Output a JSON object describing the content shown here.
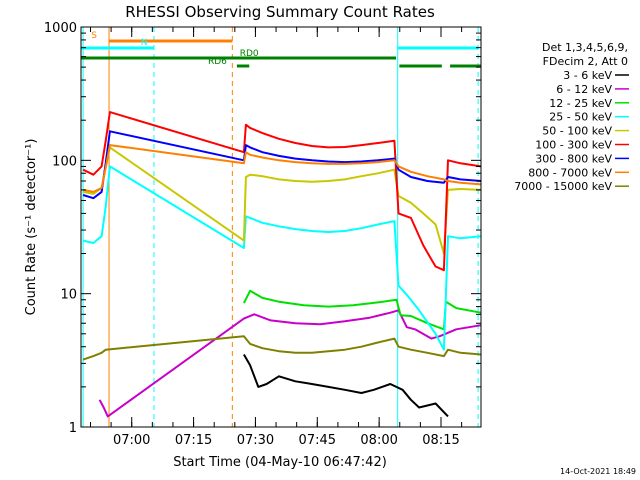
{
  "chart_data": {
    "type": "line",
    "title": "RHESSI Observing Summary Count Rates",
    "xlabel": "Start Time (04-May-10 06:47:42)",
    "ylabel": "Count Rate (s⁻¹ detector⁻¹)",
    "y_scale": "log",
    "ylim": [
      1,
      1000
    ],
    "xlim_minutes": [
      0,
      97
    ],
    "y_ticks": [
      {
        "value": 1,
        "label": "1"
      },
      {
        "value": 10,
        "label": "10"
      },
      {
        "value": 100,
        "label": "100"
      },
      {
        "value": 1000,
        "label": "1000"
      }
    ],
    "x_ticks": [
      {
        "value": 12.3,
        "label": "07:00"
      },
      {
        "value": 27.3,
        "label": "07:15"
      },
      {
        "value": 42.3,
        "label": "07:30"
      },
      {
        "value": 57.3,
        "label": "07:45"
      },
      {
        "value": 72.3,
        "label": "08:00"
      },
      {
        "value": 87.3,
        "label": "08:15"
      }
    ],
    "legend": {
      "header_lines": [
        "Det 1,3,4,5,6,9,",
        "FDecim 2, Att 0"
      ],
      "placement": "right"
    },
    "series": [
      {
        "name": "3 - 6 keV",
        "color": "#000000",
        "x": [
          39.5,
          41,
          43,
          45,
          48,
          52,
          56,
          60,
          64,
          68,
          71,
          73,
          75,
          78,
          80,
          82,
          86,
          89
        ],
        "y": [
          3.5,
          2.9,
          2.0,
          2.1,
          2.4,
          2.2,
          2.1,
          2.0,
          1.9,
          1.8,
          1.9,
          2.0,
          2.1,
          1.9,
          1.6,
          1.4,
          1.5,
          1.2
        ]
      },
      {
        "name": "6 - 12 keV",
        "color": "#c800c8",
        "x": [
          4.5,
          5.5,
          6.5,
          39.5,
          42,
          46,
          52,
          58,
          64,
          70,
          75,
          77,
          79,
          81,
          85,
          87,
          91,
          97
        ],
        "y": [
          1.6,
          1.4,
          1.2,
          6.5,
          7.0,
          6.3,
          6.0,
          5.9,
          6.2,
          6.6,
          7.2,
          7.5,
          5.6,
          5.4,
          4.6,
          4.8,
          5.4,
          5.8
        ]
      },
      {
        "name": "12 - 25 keV",
        "color": "#00e000",
        "x": [
          39.5,
          41,
          44,
          48,
          54,
          60,
          66,
          72,
          76.5,
          77.5,
          80,
          84,
          88,
          88.5,
          91,
          97
        ],
        "y": [
          8.5,
          10.5,
          9.3,
          8.7,
          8.2,
          8.0,
          8.2,
          8.6,
          9.0,
          6.9,
          6.8,
          6.0,
          5.4,
          8.7,
          7.8,
          7.2
        ]
      },
      {
        "name": "25 - 50 keV",
        "color": "#00ffff",
        "x": [
          0.5,
          3,
          5,
          6,
          7,
          39.5,
          40,
          41,
          44,
          48,
          52,
          56,
          60,
          64,
          68,
          72,
          76,
          77,
          79,
          82,
          86,
          88,
          89,
          92,
          97
        ],
        "y": [
          25,
          24,
          27,
          45,
          90,
          22,
          38,
          37,
          34,
          32,
          30.5,
          29.5,
          29,
          29.5,
          31,
          33,
          35,
          11.5,
          9.8,
          7.5,
          5.0,
          3.8,
          27,
          26,
          27
        ]
      },
      {
        "name": "50 - 100 keV",
        "color": "#c8c800",
        "x": [
          0.5,
          3,
          5,
          6,
          7,
          39.5,
          40,
          41,
          44,
          48,
          52,
          56,
          60,
          64,
          68,
          72,
          76,
          77,
          80,
          83,
          86,
          88,
          89,
          92,
          97
        ],
        "y": [
          58,
          56,
          62,
          90,
          125,
          25,
          75,
          78,
          76,
          72,
          70,
          69,
          70,
          72,
          76,
          80,
          85,
          54,
          48,
          40,
          33,
          20,
          60,
          61,
          60
        ]
      },
      {
        "name": "100 - 300 keV",
        "color": "#ff0000",
        "x": [
          0.5,
          3,
          5,
          6,
          7,
          39.5,
          40,
          41,
          44,
          48,
          52,
          56,
          60,
          64,
          68,
          72,
          76,
          77,
          80,
          83,
          85,
          86,
          88,
          89,
          92,
          97
        ],
        "y": [
          85,
          78,
          90,
          140,
          230,
          115,
          185,
          175,
          160,
          145,
          135,
          128,
          125,
          126,
          130,
          135,
          140,
          40,
          37,
          23,
          18,
          16,
          15,
          100,
          95,
          90
        ]
      },
      {
        "name": "300 - 800 keV",
        "color": "#0000ff",
        "x": [
          0.5,
          3,
          5,
          6,
          7,
          39.5,
          40,
          41,
          44,
          48,
          52,
          56,
          60,
          64,
          68,
          72,
          76,
          77,
          80,
          84,
          88,
          89,
          92,
          97
        ],
        "y": [
          55,
          52,
          58,
          95,
          165,
          100,
          130,
          125,
          115,
          108,
          103,
          100,
          98,
          97,
          98,
          100,
          103,
          85,
          75,
          70,
          68,
          75,
          72,
          70
        ]
      },
      {
        "name": "800 - 7000 keV",
        "color": "#ff8000",
        "x": [
          0.5,
          3,
          5,
          6,
          7,
          39.5,
          40,
          41,
          44,
          48,
          52,
          56,
          60,
          64,
          68,
          72,
          76,
          77,
          80,
          84,
          88,
          89,
          92,
          97
        ],
        "y": [
          60,
          58,
          62,
          88,
          130,
          95,
          115,
          110,
          105,
          100,
          97,
          95,
          94,
          94,
          95,
          97,
          100,
          90,
          82,
          76,
          72,
          70,
          68,
          66
        ]
      },
      {
        "name": "7000 - 15000 keV",
        "color": "#808000",
        "x": [
          0.5,
          3,
          5,
          6,
          39.5,
          41,
          44,
          48,
          52,
          56,
          60,
          64,
          68,
          72,
          76,
          77,
          80,
          84,
          88,
          89,
          92,
          97
        ],
        "y": [
          3.2,
          3.4,
          3.6,
          3.8,
          4.8,
          4.2,
          3.9,
          3.7,
          3.6,
          3.6,
          3.7,
          3.8,
          4.0,
          4.3,
          4.6,
          4.0,
          3.8,
          3.6,
          3.4,
          3.8,
          3.6,
          3.5
        ]
      }
    ],
    "vertical_markers": [
      {
        "x": 6.8,
        "color": "#ff8000",
        "style": "solid"
      },
      {
        "x": 0.5,
        "color": "#00ffff",
        "style": "solid"
      },
      {
        "x": 17.7,
        "color": "#00ffff",
        "style": "dashed"
      },
      {
        "x": 36.7,
        "color": "#ff8000",
        "style": "dashed"
      },
      {
        "x": 76.8,
        "color": "#00ffff",
        "style": "solid"
      },
      {
        "x": 96.3,
        "color": "#00ffff",
        "style": "dashed"
      }
    ],
    "state_bars": [
      {
        "label": "S",
        "color": "#ff8000",
        "level": 1,
        "segments": [
          [
            6.8,
            36.7
          ]
        ]
      },
      {
        "label": "N",
        "color": "#00ffff",
        "level": 2,
        "segments": [
          [
            0,
            17.7
          ],
          [
            76.8,
            96.3
          ]
        ]
      },
      {
        "label": "RD0",
        "color": "#008000",
        "level": 3,
        "segments": [
          [
            0,
            76.4
          ]
        ],
        "label_at": 38.5
      },
      {
        "label": "RD6",
        "color": "#008000",
        "level": 4,
        "segments": [
          [
            37.8,
            40.8
          ],
          [
            77.2,
            87.5
          ],
          [
            89.5,
            97
          ]
        ],
        "label_at": 30.8
      }
    ],
    "timestamp": "14-Oct-2021 18:49"
  }
}
